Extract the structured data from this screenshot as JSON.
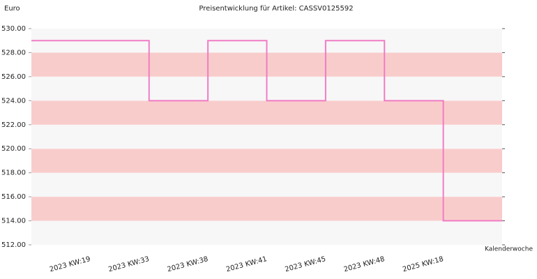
{
  "chart_data": {
    "type": "step",
    "title": "Preisentwicklung für Artikel: CASSV0125592",
    "y_label": "Euro",
    "x_label": "Kalenderwoche",
    "categories": [
      "2023 KW:19",
      "2023 KW:33",
      "2023 KW:38",
      "2023 KW:41",
      "2023 KW:45",
      "2023 KW:48",
      "2025 KW:18"
    ],
    "values": [
      529,
      524,
      529,
      524,
      529,
      524,
      514
    ],
    "color": "#f07cc4",
    "band_colors": [
      "#f7f7f7",
      "#f9cccc"
    ],
    "ylim": [
      512,
      530
    ],
    "yticks": [
      {
        "value": 512,
        "label": "512.00"
      },
      {
        "value": 514,
        "label": "514.00"
      },
      {
        "value": 516,
        "label": "516.00"
      },
      {
        "value": 518,
        "label": "518.00"
      },
      {
        "value": 520,
        "label": "520.00"
      },
      {
        "value": 522,
        "label": "522.00"
      },
      {
        "value": 524,
        "label": "524.00"
      },
      {
        "value": 526,
        "label": "526.00"
      },
      {
        "value": 528,
        "label": "528.00"
      },
      {
        "value": 530,
        "label": "530.00"
      }
    ]
  }
}
